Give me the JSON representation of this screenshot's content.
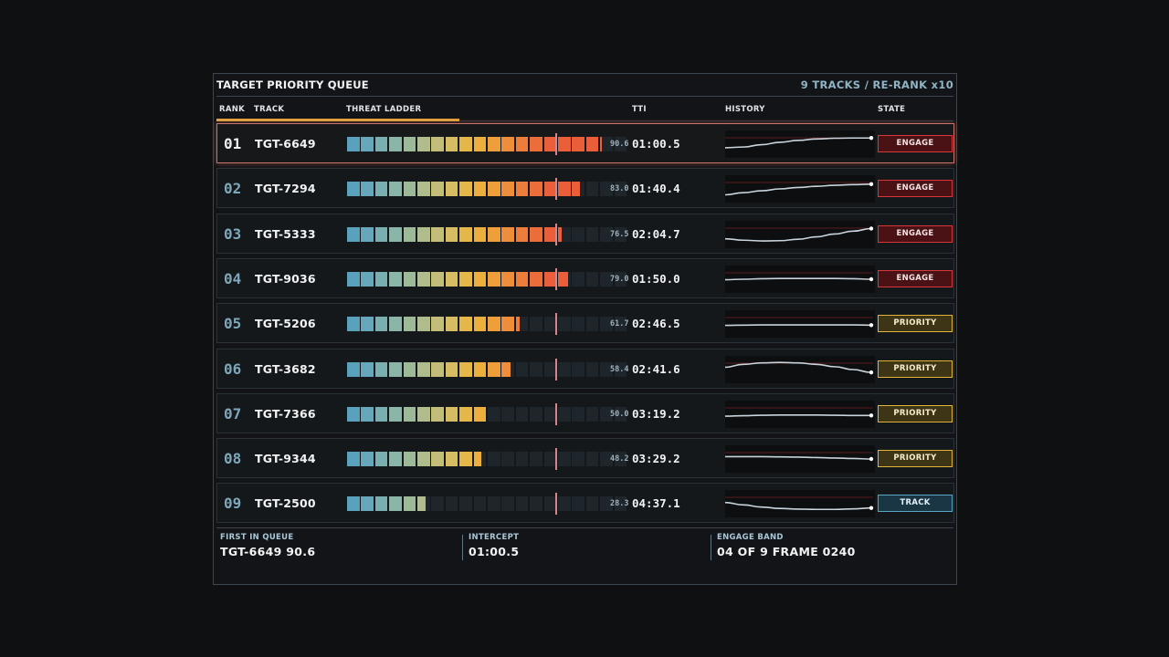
{
  "header": {
    "title": "TARGET PRIORITY QUEUE",
    "track_count": "9 TRACKS / RE-RANK x10"
  },
  "columns": {
    "rank": "RANK",
    "track": "TRACK",
    "ladder": "THREAT LADDER",
    "tti": "TTI",
    "history": "HISTORY",
    "state": "STATE"
  },
  "rerank_progress": 0.33,
  "colors": {
    "ladder": [
      "#5aa1bd",
      "#67a7bb",
      "#7aafb2",
      "#8bb5a8",
      "#9db99a",
      "#b0bc8c",
      "#c4bd79",
      "#d6bc62",
      "#e4b748",
      "#ecaf3d",
      "#ef9f3a",
      "#ef8e3a",
      "#ee7c3a",
      "#ec6c3a",
      "#ea5e3a"
    ],
    "empty": "#1f262b"
  },
  "rows": [
    {
      "rank": "01",
      "track": "TGT-6649",
      "score": "90.6",
      "level": 90.6,
      "tti": "01:00.5",
      "state": "ENGAGE",
      "state_kind": "engage",
      "history": [
        0.35,
        0.38,
        0.48,
        0.58,
        0.66,
        0.72,
        0.75,
        0.76,
        0.76
      ]
    },
    {
      "rank": "02",
      "track": "TGT-7294",
      "score": "83.0",
      "level": 83.0,
      "tti": "01:40.4",
      "state": "ENGAGE",
      "state_kind": "engage",
      "history": [
        0.25,
        0.34,
        0.42,
        0.5,
        0.56,
        0.61,
        0.65,
        0.68,
        0.7
      ]
    },
    {
      "rank": "03",
      "track": "TGT-5333",
      "score": "76.5",
      "level": 76.5,
      "tti": "02:04.7",
      "state": "ENGAGE",
      "state_kind": "engage",
      "history": [
        0.32,
        0.26,
        0.23,
        0.24,
        0.3,
        0.4,
        0.52,
        0.64,
        0.75
      ]
    },
    {
      "rank": "04",
      "track": "TGT-9036",
      "score": "79.0",
      "level": 79.0,
      "tti": "01:50.0",
      "state": "ENGAGE",
      "state_kind": "engage",
      "history": [
        0.48,
        0.5,
        0.52,
        0.53,
        0.53,
        0.53,
        0.53,
        0.52,
        0.5
      ]
    },
    {
      "rank": "05",
      "track": "TGT-5206",
      "score": "61.7",
      "level": 61.7,
      "tti": "02:46.5",
      "state": "PRIORITY",
      "state_kind": "priority",
      "history": [
        0.44,
        0.45,
        0.46,
        0.46,
        0.46,
        0.46,
        0.46,
        0.46,
        0.45
      ]
    },
    {
      "rank": "06",
      "track": "TGT-3682",
      "score": "58.4",
      "level": 58.4,
      "tti": "02:41.6",
      "state": "PRIORITY",
      "state_kind": "priority",
      "history": [
        0.6,
        0.72,
        0.78,
        0.8,
        0.78,
        0.72,
        0.62,
        0.5,
        0.38
      ]
    },
    {
      "rank": "07",
      "track": "TGT-7366",
      "score": "50.0",
      "level": 50.0,
      "tti": "03:19.2",
      "state": "PRIORITY",
      "state_kind": "priority",
      "history": [
        0.42,
        0.44,
        0.46,
        0.47,
        0.47,
        0.47,
        0.46,
        0.45,
        0.45
      ]
    },
    {
      "rank": "08",
      "track": "TGT-9344",
      "score": "48.2",
      "level": 48.2,
      "tti": "03:29.2",
      "state": "PRIORITY",
      "state_kind": "priority",
      "history": [
        0.6,
        0.6,
        0.6,
        0.59,
        0.58,
        0.56,
        0.54,
        0.52,
        0.5
      ]
    },
    {
      "rank": "09",
      "track": "TGT-2500",
      "score": "28.3",
      "level": 28.3,
      "tti": "04:37.1",
      "state": "TRACK",
      "state_kind": "track",
      "history": [
        0.55,
        0.45,
        0.36,
        0.3,
        0.27,
        0.26,
        0.26,
        0.28,
        0.32
      ]
    }
  ],
  "footer": {
    "first_label": "FIRST IN QUEUE",
    "first_value": "TGT-6649  90.6",
    "intercept_label": "INTERCEPT",
    "intercept_value": "01:00.5",
    "band_label": "ENGAGE BAND",
    "band_value": "04 OF 9  FRAME 0240"
  }
}
